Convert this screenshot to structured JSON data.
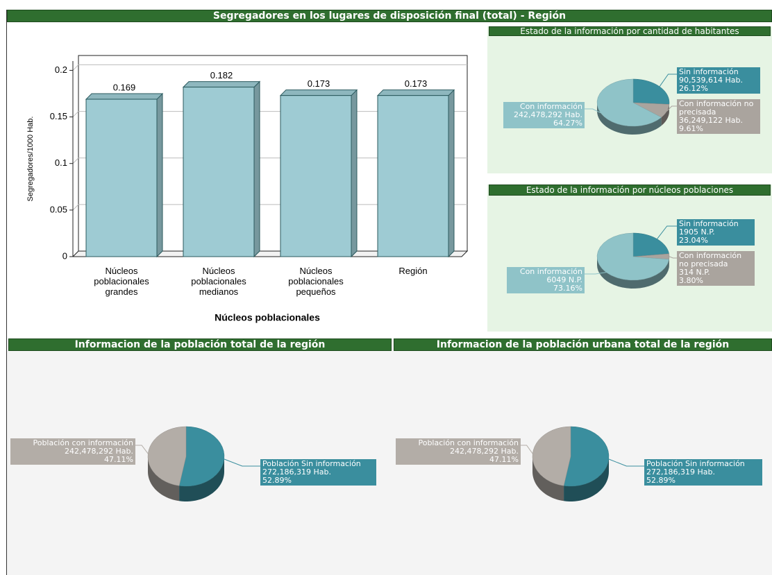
{
  "chart_data": [
    {
      "type": "bar",
      "title": "Segregadores en los lugares de disposición final (total) - Región",
      "categories": [
        "Núcleos poblacionales grandes",
        "Núcleos poblacionales medianos",
        "Núcleos poblacionales pequeños",
        "Región"
      ],
      "values": [
        0.169,
        0.182,
        0.173,
        0.173
      ],
      "color": "#9ecbd3",
      "xlabel": "Núcleos poblacionales",
      "ylabel": "Segregadores/1000 Hab.",
      "ylim": [
        0,
        0.21
      ],
      "yticks": [
        0,
        0.05,
        0.1,
        0.15,
        0.2
      ],
      "grid": true
    },
    {
      "type": "pie",
      "title": "Estado de la información por cantidad de habitantes",
      "categories": [
        "Sin información",
        "Con información no precisada",
        "Con información"
      ],
      "values": [
        26.12,
        9.61,
        64.27
      ],
      "value_labels": [
        "26.12%",
        "9.61%",
        "64.27%"
      ],
      "amounts": [
        90539614,
        36249122,
        242478292
      ],
      "amount_labels": [
        "90,539,614 Hab.",
        "36,249,122 Hab.",
        "242,478,292 Hab."
      ],
      "colors": [
        "#3a8e9e",
        "#aaa49e",
        "#8fc3c8"
      ]
    },
    {
      "type": "pie",
      "title": "Estado de la información por núcleos poblaciones",
      "categories": [
        "Sin información",
        "Con información no precisada",
        "Con información"
      ],
      "values": [
        23.04,
        3.8,
        73.16
      ],
      "value_labels": [
        "23.04%",
        "3.80%",
        "73.16%"
      ],
      "amounts": [
        1905,
        314,
        6049
      ],
      "amount_labels": [
        "1905 N.P.",
        "314 N.P.",
        "6049 N.P."
      ],
      "colors": [
        "#3a8e9e",
        "#aaa49e",
        "#8fc3c8"
      ]
    },
    {
      "type": "pie",
      "title": "Informacion de la población total de la región",
      "categories": [
        "Población Sin información",
        "Población con información"
      ],
      "values": [
        52.89,
        47.11
      ],
      "value_labels": [
        "52.89%",
        "47.11%"
      ],
      "amounts": [
        272186319,
        242478292
      ],
      "amount_labels": [
        "272,186,319 Hab.",
        "242,478,292 Hab."
      ],
      "colors": [
        "#3a8e9e",
        "#b3ada7"
      ]
    },
    {
      "type": "pie",
      "title": "Informacion de la población urbana total de la región",
      "categories": [
        "Población Sin información",
        "Población con información"
      ],
      "values": [
        52.89,
        47.11
      ],
      "value_labels": [
        "52.89%",
        "47.11%"
      ],
      "amounts": [
        272186319,
        242478292
      ],
      "amount_labels": [
        "272,186,319 Hab.",
        "242,478,292 Hab."
      ],
      "colors": [
        "#3a8e9e",
        "#b3ada7"
      ]
    }
  ]
}
